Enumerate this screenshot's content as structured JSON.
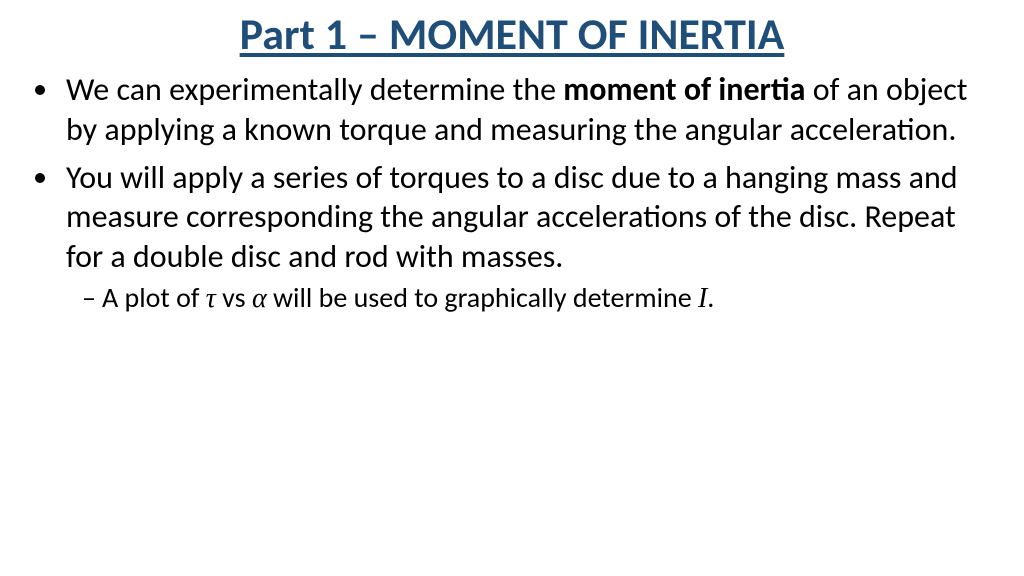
{
  "title": {
    "text": "Part 1 – MOMENT OF INERTIA",
    "color": "#1f4e79",
    "fontsize": 44
  },
  "body": {
    "color": "#000000",
    "fontsize_level1": 32,
    "fontsize_level2": 28,
    "line_height": 1.24,
    "bullets": [
      {
        "runs": [
          {
            "t": "We can experimentally determine the "
          },
          {
            "t": "moment of inertia",
            "bold": true
          },
          {
            "t": " of an object by applying a known torque and measuring the angular acceleration."
          }
        ]
      },
      {
        "runs": [
          {
            "t": "You will apply a series of torques to a disc due to a hanging mass and measure corresponding the angular accelerations of the disc. Repeat for a double disc and rod with masses."
          }
        ],
        "sub": [
          {
            "runs": [
              {
                "t": "A plot of "
              },
              {
                "t": "τ",
                "math": true
              },
              {
                "t": " vs "
              },
              {
                "t": "α",
                "math": true
              },
              {
                "t": " will be used to graphically determine "
              },
              {
                "t": "I",
                "math": true
              },
              {
                "t": "."
              }
            ]
          }
        ]
      }
    ]
  }
}
